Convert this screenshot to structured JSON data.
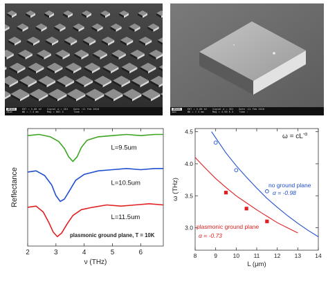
{
  "sem_left": {
    "info_bar": {
      "logo": "ZEISS",
      "scale": "20µm",
      "col1": [
        "EHT = 5.00 kV",
        "WD = 7.4 mm"
      ],
      "col2": [
        "Signal A = SE2",
        "Mag = 862 X"
      ],
      "col3": [
        "Date :11 Feb 2010",
        "Time :"
      ]
    }
  },
  "sem_right": {
    "info_bar": {
      "logo": "ZEISS",
      "scale": "3µm",
      "col1": [
        "EHT = 5.00 kV",
        "WD = 7.3 mm"
      ],
      "col2": [
        "Signal A = SE2",
        "Mag = 4.90 K X"
      ],
      "col3": [
        "Date :11 Feb 2010",
        "Time :"
      ]
    }
  },
  "chart_data": [
    {
      "type": "line",
      "xlabel": "ν (THz)",
      "ylabel": "Reflectance",
      "xlim": [
        2,
        6.8
      ],
      "xticks": [
        2,
        3,
        4,
        5,
        6
      ],
      "yticks": [],
      "annotation": "plasmonic ground plane, T = 10K",
      "series": [
        {
          "name": "L=9.5um",
          "color": "#3aa520",
          "x": [
            2.0,
            2.4,
            2.8,
            3.1,
            3.3,
            3.45,
            3.6,
            3.75,
            3.9,
            4.1,
            4.5,
            5.0,
            5.5,
            6.0,
            6.5,
            6.8
          ],
          "y": [
            0.94,
            0.95,
            0.93,
            0.89,
            0.83,
            0.76,
            0.72,
            0.76,
            0.84,
            0.9,
            0.93,
            0.94,
            0.95,
            0.94,
            0.95,
            0.95
          ]
        },
        {
          "name": "L=10.5um",
          "color": "#1f4fd0",
          "x": [
            2.0,
            2.3,
            2.6,
            2.85,
            3.0,
            3.15,
            3.3,
            3.5,
            3.7,
            4.0,
            4.5,
            5.0,
            5.5,
            6.0,
            6.5,
            6.8
          ],
          "y": [
            0.63,
            0.64,
            0.6,
            0.52,
            0.43,
            0.38,
            0.4,
            0.48,
            0.56,
            0.61,
            0.64,
            0.65,
            0.66,
            0.65,
            0.66,
            0.66
          ]
        },
        {
          "name": "L=11.5um",
          "color": "#e02020",
          "x": [
            2.0,
            2.3,
            2.55,
            2.75,
            2.9,
            3.05,
            3.2,
            3.4,
            3.6,
            3.9,
            4.3,
            4.8,
            5.3,
            5.8,
            6.3,
            6.8
          ],
          "y": [
            0.33,
            0.34,
            0.29,
            0.2,
            0.12,
            0.08,
            0.11,
            0.19,
            0.26,
            0.31,
            0.33,
            0.35,
            0.34,
            0.35,
            0.36,
            0.35
          ]
        }
      ]
    },
    {
      "type": "scatter",
      "xlabel": "L (μm)",
      "ylabel": "ω (THz)",
      "xlim": [
        8,
        14
      ],
      "ylim": [
        2.65,
        4.55
      ],
      "xticks": [
        8,
        9,
        10,
        11,
        12,
        13,
        14
      ],
      "yticks": [
        3.0,
        3.5,
        4.0,
        4.5
      ],
      "formula": "ω = cL",
      "formula_exp": "-α",
      "series": [
        {
          "name": "no ground plane",
          "alpha_label": "α = -0.98",
          "color": "#1f4fd0",
          "marker": "open-circle",
          "points_x": [
            9.0,
            10.0,
            11.5
          ],
          "points_y": [
            4.33,
            3.9,
            3.57
          ],
          "fit_x": [
            8.8,
            9.5,
            10.0,
            10.5,
            11.0,
            11.5,
            12.0,
            12.5,
            13.0,
            13.5,
            14.0
          ],
          "fit_y": [
            4.5,
            4.17,
            3.97,
            3.79,
            3.62,
            3.46,
            3.32,
            3.19,
            3.07,
            2.96,
            2.86
          ]
        },
        {
          "name": "plasmonic ground plane",
          "alpha_label": "α = -0.73",
          "color": "#e02020",
          "marker": "filled-square",
          "points_x": [
            9.5,
            10.5,
            11.5
          ],
          "points_y": [
            3.55,
            3.3,
            3.1
          ],
          "fit_x": [
            8.0,
            8.5,
            9.0,
            9.5,
            10.0,
            10.5,
            11.0,
            11.5,
            12.0,
            12.5,
            13.0
          ],
          "fit_y": [
            4.1,
            3.93,
            3.77,
            3.63,
            3.5,
            3.39,
            3.28,
            3.18,
            3.08,
            3.0,
            2.92
          ]
        }
      ]
    }
  ]
}
